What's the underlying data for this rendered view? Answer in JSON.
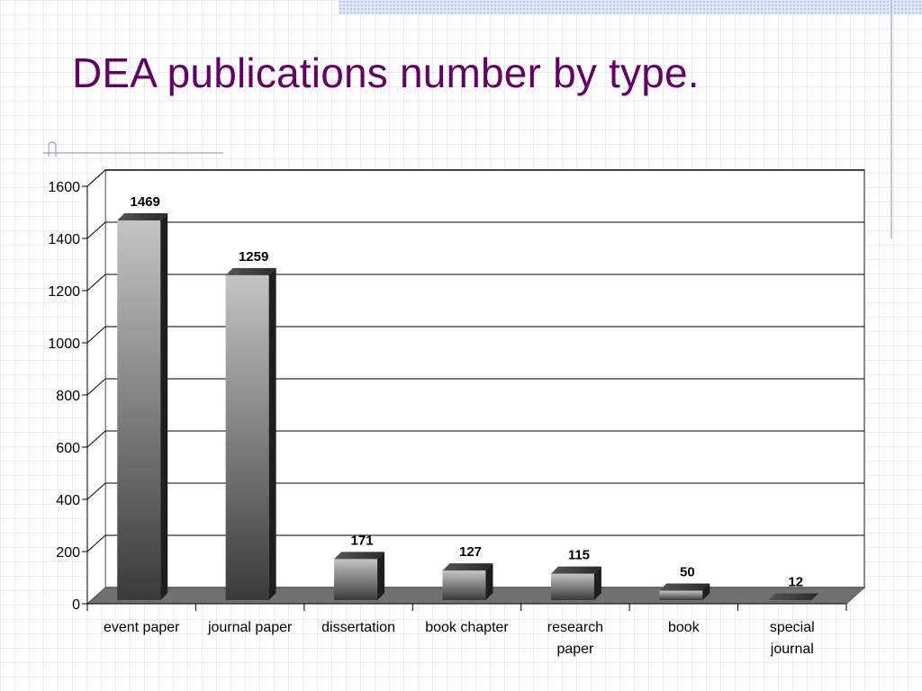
{
  "slide": {
    "title": "DEA publications number by type."
  },
  "colors": {
    "title": "#660066",
    "bar_light": "#c4c4c4",
    "bar_dark": "#3a3a3a",
    "floor": "#6e6e6e",
    "grid": "#000000"
  },
  "chart_data": {
    "type": "bar",
    "title": "",
    "xlabel": "",
    "ylabel": "",
    "categories": [
      [
        "event paper"
      ],
      [
        "journal paper"
      ],
      [
        "dissertation"
      ],
      [
        "book chapter"
      ],
      [
        "research",
        "paper"
      ],
      [
        "book"
      ],
      [
        "special",
        "journal"
      ]
    ],
    "values": [
      1469,
      1259,
      171,
      127,
      115,
      50,
      12
    ],
    "ylim": [
      0,
      1600
    ],
    "yticks": [
      0,
      200,
      400,
      600,
      800,
      1000,
      1200,
      1400,
      1600
    ],
    "grid": true,
    "data_labels": true,
    "legend": "none",
    "style": "3d-column"
  }
}
